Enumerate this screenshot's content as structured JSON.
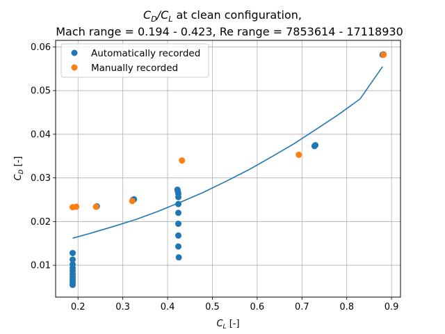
{
  "chart_data": {
    "type": "scatter",
    "title_line1_prefix": "C",
    "title_line1_sub1": "D",
    "title_line1_mid": "/C",
    "title_line1_sub2": "L",
    "title_line1_suffix": " at clean configuration,",
    "title_line2": "Mach range = 0.194 - 0.423, Re range = 7853614 - 17118930",
    "xlabel_main": "C",
    "xlabel_sub": "L",
    "xlabel_unit": " [-]",
    "ylabel_main": "C",
    "ylabel_sub": "D",
    "ylabel_unit": " [-]",
    "xlim": [
      0.15,
      0.92
    ],
    "ylim": [
      0.0027,
      0.0615
    ],
    "xticks": [
      0.2,
      0.3,
      0.4,
      0.5,
      0.6,
      0.7,
      0.8,
      0.9
    ],
    "xtick_labels": [
      "0.2",
      "0.3",
      "0.4",
      "0.5",
      "0.6",
      "0.7",
      "0.8",
      "0.9"
    ],
    "yticks": [
      0.01,
      0.02,
      0.03,
      0.04,
      0.05,
      0.06
    ],
    "ytick_labels": [
      "0.01",
      "0.02",
      "0.03",
      "0.04",
      "0.05",
      "0.06"
    ],
    "grid": true,
    "legend_position": "upper-left",
    "series": [
      {
        "name": "Automatically recorded",
        "color": "#1f77b4",
        "points": [
          [
            0.188,
            0.0055
          ],
          [
            0.188,
            0.0059
          ],
          [
            0.188,
            0.0063
          ],
          [
            0.188,
            0.0068
          ],
          [
            0.188,
            0.0073
          ],
          [
            0.188,
            0.008
          ],
          [
            0.188,
            0.0087
          ],
          [
            0.188,
            0.0094
          ],
          [
            0.188,
            0.0102
          ],
          [
            0.188,
            0.0113
          ],
          [
            0.188,
            0.0128
          ],
          [
            0.241,
            0.0234
          ],
          [
            0.242,
            0.0235
          ],
          [
            0.323,
            0.025
          ],
          [
            0.325,
            0.0251
          ],
          [
            0.422,
            0.0273
          ],
          [
            0.423,
            0.0268
          ],
          [
            0.424,
            0.0264
          ],
          [
            0.424,
            0.0256
          ],
          [
            0.424,
            0.024
          ],
          [
            0.424,
            0.022
          ],
          [
            0.424,
            0.0195
          ],
          [
            0.424,
            0.0168
          ],
          [
            0.424,
            0.0143
          ],
          [
            0.425,
            0.0118
          ],
          [
            0.728,
            0.0373
          ],
          [
            0.73,
            0.0375
          ],
          [
            0.88,
            0.0582
          ],
          [
            0.882,
            0.0583
          ]
        ]
      },
      {
        "name": "Manually recorded",
        "color": "#ff7f0e",
        "points": [
          [
            0.188,
            0.0233
          ],
          [
            0.196,
            0.0234
          ],
          [
            0.24,
            0.0234
          ],
          [
            0.321,
            0.0247
          ],
          [
            0.432,
            0.034
          ],
          [
            0.693,
            0.0353
          ],
          [
            0.882,
            0.0582
          ]
        ]
      }
    ],
    "fit_curve": {
      "color": "#1f77b4",
      "x": [
        0.188,
        0.23,
        0.28,
        0.33,
        0.38,
        0.43,
        0.48,
        0.53,
        0.58,
        0.63,
        0.68,
        0.73,
        0.78,
        0.83,
        0.88
      ],
      "y": [
        0.0162,
        0.0174,
        0.0189,
        0.0205,
        0.0224,
        0.0245,
        0.0267,
        0.0292,
        0.0318,
        0.0347,
        0.0377,
        0.041,
        0.0444,
        0.0481,
        0.0555
      ]
    }
  }
}
